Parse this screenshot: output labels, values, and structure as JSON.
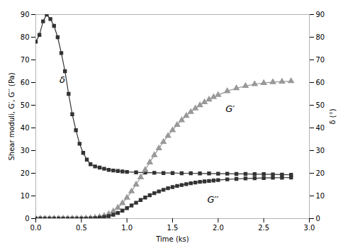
{
  "chart_data": {
    "type": "line",
    "xlabel": "Time (ks)",
    "ylabel": "Shear moduli, G′, G′′ (Pa)",
    "y2label": "δ (°)",
    "xlim": [
      0,
      3
    ],
    "ylim": [
      0,
      90
    ],
    "y2lim": [
      0,
      90
    ],
    "xticks": [
      {
        "value": 0,
        "label": "0.0"
      },
      0.5,
      {
        "value": 1.0,
        "label": "1.0"
      },
      1.5,
      {
        "value": 2.0,
        "label": "2.0"
      },
      2.5,
      {
        "value": 3.0,
        "label": "3.0"
      }
    ],
    "yticks": [
      0,
      10,
      20,
      30,
      40,
      50,
      60,
      70,
      80,
      90
    ],
    "y2ticks": [
      0,
      10,
      20,
      30,
      40,
      50,
      60,
      70,
      80,
      90
    ],
    "series": [
      {
        "axis": "y2",
        "color": "#333333",
        "marker": "square",
        "x": [
          0.0,
          0.04,
          0.08,
          0.12,
          0.16,
          0.2,
          0.24,
          0.28,
          0.32,
          0.36,
          0.4,
          0.44,
          0.48,
          0.52,
          0.56,
          0.6,
          0.65,
          0.7,
          0.75,
          0.8,
          0.85,
          0.9,
          0.95,
          1.0,
          1.1,
          1.2,
          1.3,
          1.4,
          1.5,
          1.6,
          1.7,
          1.8,
          1.9,
          2.0,
          2.1,
          2.2,
          2.3,
          2.4,
          2.5,
          2.6,
          2.7,
          2.8
        ],
        "values": [
          78,
          81,
          87,
          90,
          88,
          85,
          80,
          73,
          65,
          55,
          46,
          39,
          33,
          29,
          26,
          24,
          23,
          22.5,
          22.0,
          21.5,
          21.2,
          21.0,
          20.8,
          20.6,
          20.4,
          20.3,
          20.2,
          20.1,
          20.1,
          20.0,
          20.0,
          19.9,
          19.9,
          19.8,
          19.8,
          19.7,
          19.7,
          19.6,
          19.6,
          19.5,
          19.4,
          19.3
        ]
      },
      {
        "color": "#999999",
        "marker": "triangle",
        "x": [
          0.0,
          0.05,
          0.1,
          0.15,
          0.2,
          0.25,
          0.3,
          0.35,
          0.4,
          0.45,
          0.5,
          0.55,
          0.6,
          0.65,
          0.7,
          0.75,
          0.8,
          0.85,
          0.9,
          0.95,
          1.0,
          1.05,
          1.1,
          1.15,
          1.2,
          1.25,
          1.3,
          1.35,
          1.4,
          1.45,
          1.5,
          1.55,
          1.6,
          1.65,
          1.7,
          1.75,
          1.8,
          1.85,
          1.9,
          1.95,
          2.0,
          2.1,
          2.2,
          2.3,
          2.4,
          2.5,
          2.6,
          2.7,
          2.8
        ],
        "values": [
          0.0,
          0.0,
          0.0,
          0.0,
          0.0,
          0.0,
          0.0,
          0.0,
          0.0,
          0.0,
          0.05,
          0.1,
          0.2,
          0.4,
          0.7,
          1.2,
          2.0,
          3.2,
          4.8,
          6.8,
          9.2,
          12.0,
          15.0,
          18.2,
          21.5,
          24.8,
          28.0,
          31.0,
          33.8,
          36.5,
          39.0,
          41.3,
          43.4,
          45.3,
          47.0,
          48.6,
          50.0,
          51.3,
          52.5,
          53.6,
          54.5,
          56.2,
          57.5,
          58.5,
          59.3,
          59.8,
          60.2,
          60.4,
          60.6
        ]
      },
      {
        "color": "#333333",
        "marker": "square",
        "x": [
          0.0,
          0.05,
          0.1,
          0.15,
          0.2,
          0.25,
          0.3,
          0.35,
          0.4,
          0.45,
          0.5,
          0.55,
          0.6,
          0.65,
          0.7,
          0.75,
          0.8,
          0.85,
          0.9,
          0.95,
          1.0,
          1.05,
          1.1,
          1.15,
          1.2,
          1.25,
          1.3,
          1.35,
          1.4,
          1.45,
          1.5,
          1.55,
          1.6,
          1.65,
          1.7,
          1.75,
          1.8,
          1.85,
          1.9,
          1.95,
          2.0,
          2.1,
          2.2,
          2.3,
          2.4,
          2.5,
          2.6,
          2.7,
          2.8
        ],
        "values": [
          0.0,
          0.0,
          0.0,
          0.0,
          0.0,
          0.0,
          0.0,
          0.0,
          0.0,
          0.0,
          0.02,
          0.05,
          0.1,
          0.2,
          0.4,
          0.7,
          1.1,
          1.7,
          2.5,
          3.5,
          4.6,
          5.8,
          7.0,
          8.2,
          9.3,
          10.3,
          11.2,
          12.0,
          12.7,
          13.4,
          13.9,
          14.4,
          14.8,
          15.2,
          15.6,
          15.9,
          16.2,
          16.4,
          16.6,
          16.8,
          17.0,
          17.3,
          17.5,
          17.7,
          17.8,
          17.9,
          18.0,
          18.05,
          18.1
        ]
      }
    ],
    "annotations": [
      {
        "text": "δ",
        "x": 0.26,
        "y": 60
      },
      {
        "text": "G′",
        "x": 2.08,
        "y": 47
      },
      {
        "text": "G′′",
        "x": 1.88,
        "y": 7
      }
    ]
  }
}
